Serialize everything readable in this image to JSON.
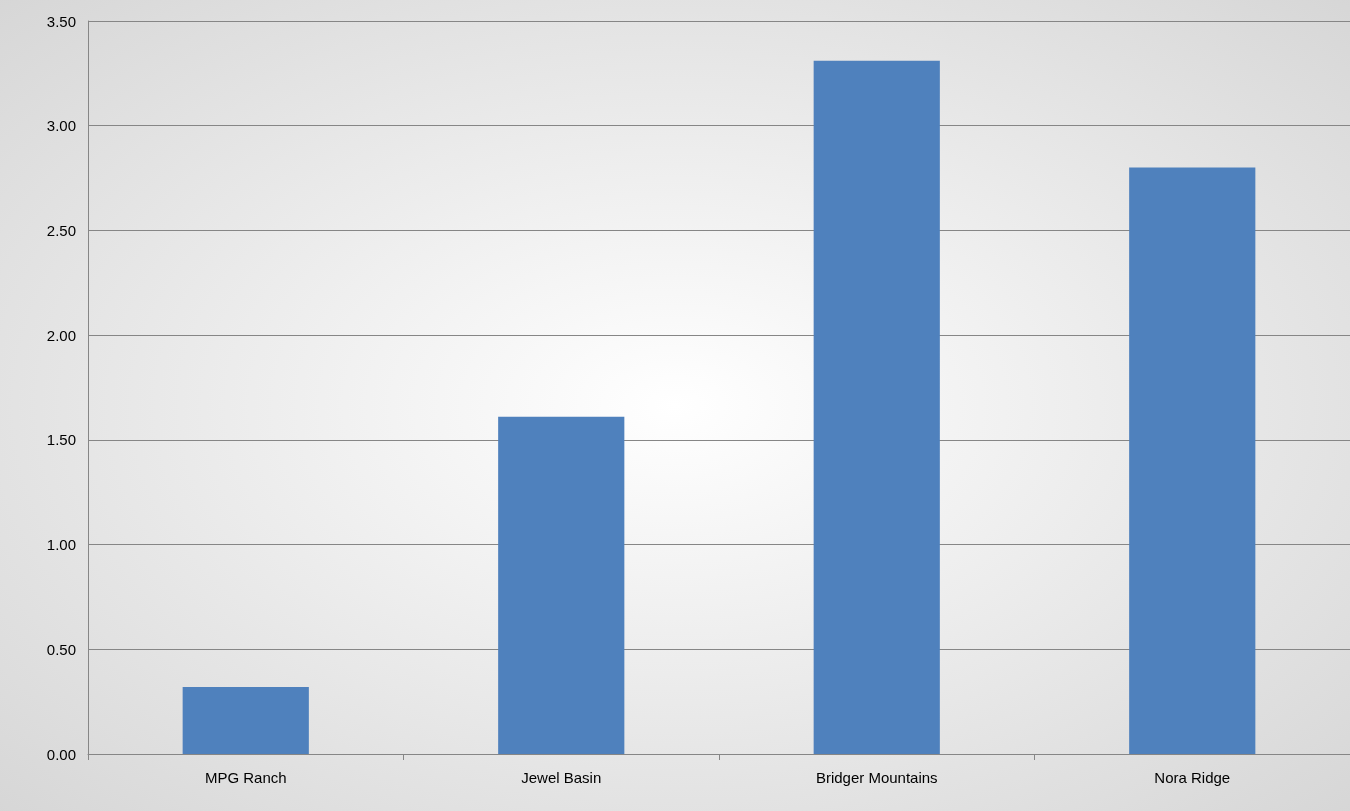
{
  "chart_data": {
    "type": "bar",
    "categories": [
      "MPG Ranch",
      "Jewel Basin",
      "Bridger Mountains",
      "Nora Ridge"
    ],
    "values": [
      0.32,
      1.61,
      3.31,
      2.8
    ],
    "color": "#4f81bd",
    "ylim": [
      0,
      3.5
    ],
    "yticks": [
      {
        "value": 0,
        "label": "0.00"
      },
      {
        "value": 0.5,
        "label": "0.50"
      },
      {
        "value": 1,
        "label": "1.00"
      },
      {
        "value": 1.5,
        "label": "1.50"
      },
      {
        "value": 2,
        "label": "2.00"
      },
      {
        "value": 2.5,
        "label": "2.50"
      },
      {
        "value": 3,
        "label": "3.00"
      },
      {
        "value": 3.5,
        "label": "3.50"
      }
    ],
    "grid": "y"
  }
}
